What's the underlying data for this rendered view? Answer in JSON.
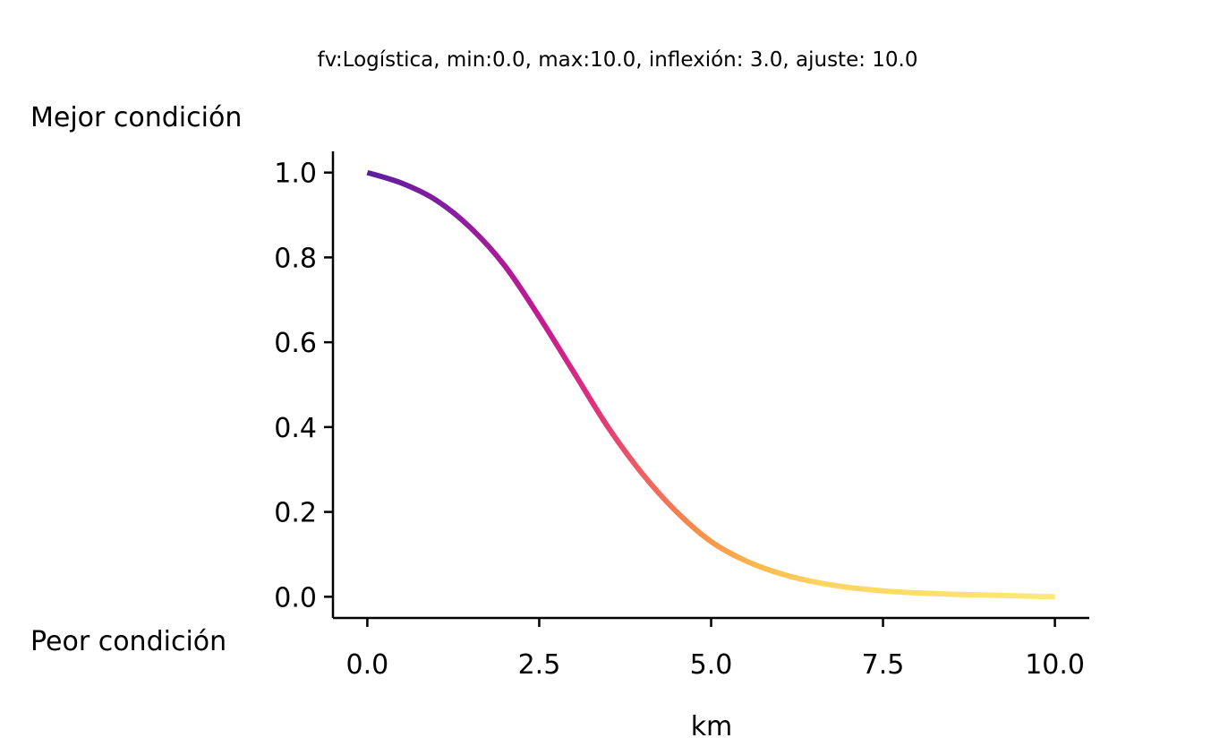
{
  "chart_data": {
    "type": "line",
    "title": "fv:Logística, min:0.0, max:10.0, inflexión: 3.0, ajuste: 10.0",
    "xlabel": "km",
    "ylabel_top": "Mejor condición",
    "ylabel_bottom": "Peor condición",
    "xlim": [
      -0.5,
      10.5
    ],
    "ylim": [
      -0.05,
      1.05
    ],
    "x_ticks": [
      0.0,
      2.5,
      5.0,
      7.5,
      10.0
    ],
    "x_tick_labels": [
      "0.0",
      "2.5",
      "5.0",
      "7.5",
      "10.0"
    ],
    "y_ticks": [
      0.0,
      0.2,
      0.4,
      0.6,
      0.8,
      1.0
    ],
    "y_tick_labels": [
      "0.0",
      "0.2",
      "0.4",
      "0.6",
      "0.8",
      "1.0"
    ],
    "grid": false,
    "colormap": "plasma",
    "series": [
      {
        "x": [
          0.0,
          0.5,
          1.0,
          1.5,
          2.0,
          2.5,
          3.0,
          3.5,
          4.0,
          4.5,
          5.0,
          5.5,
          6.0,
          6.5,
          7.0,
          7.5,
          8.0,
          8.5,
          9.0,
          9.5,
          10.0
        ],
        "y": [
          1.0,
          0.975,
          0.935,
          0.87,
          0.78,
          0.66,
          0.53,
          0.4,
          0.29,
          0.2,
          0.13,
          0.085,
          0.055,
          0.035,
          0.022,
          0.014,
          0.009,
          0.006,
          0.004,
          0.002,
          0.0
        ]
      }
    ]
  }
}
